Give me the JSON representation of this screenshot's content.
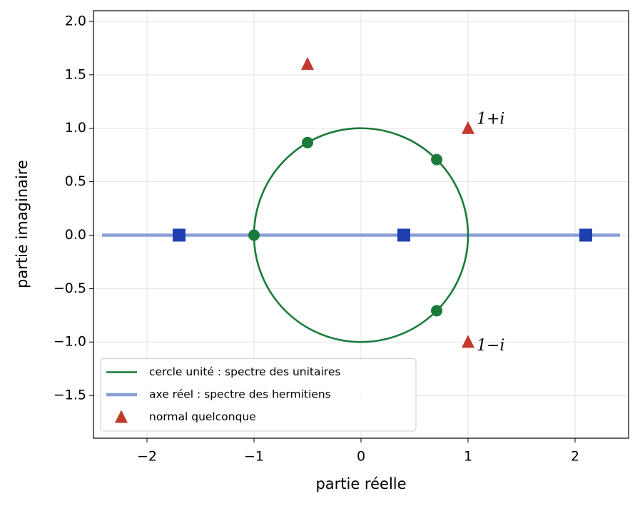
{
  "chart_data": {
    "type": "scatter",
    "xlabel": "partie réelle",
    "ylabel": "partie imaginaire",
    "xlim": [
      -2.5,
      2.5
    ],
    "ylim": [
      -1.9,
      2.1
    ],
    "xticks": [
      {
        "value": -2,
        "label": "−2"
      },
      {
        "value": -1,
        "label": "−1"
      },
      0,
      1,
      2
    ],
    "yticks": [
      {
        "value": -1.5,
        "label": "−1.5"
      },
      {
        "value": -1.0,
        "label": "−1.0"
      },
      {
        "value": -0.5,
        "label": "−0.5"
      },
      {
        "value": 0,
        "label": "0.0"
      },
      0.5,
      {
        "value": 1.0,
        "label": "1.0"
      },
      1.5,
      {
        "value": 2.0,
        "label": "2.0"
      }
    ],
    "grid": true,
    "legend": "lower left",
    "series": [
      {
        "name": "cercle unité : spectre des unitaires",
        "kind": "circle",
        "color": "#1a7a3a",
        "center": [
          0,
          0
        ],
        "radius": 1
      },
      {
        "name": "axe réel : spectre des hermitiens",
        "kind": "line",
        "color": "#8a9fd8",
        "x": [
          -2.42,
          2.42
        ],
        "values": [
          0,
          0
        ]
      },
      {
        "name": "normal quelconque",
        "kind": "triangle",
        "color": "#c0392b",
        "x": [
          -0.5,
          1,
          1
        ],
        "values": [
          1.6,
          1,
          -1
        ]
      },
      {
        "kind": "dot",
        "color": "#1a7a3a",
        "x": [
          -0.5,
          0.707,
          -1,
          0.707
        ],
        "values": [
          0.866,
          0.707,
          0,
          -0.707
        ]
      },
      {
        "kind": "square",
        "color": "#1f3fb0",
        "x": [
          -1.7,
          0.4,
          2.1
        ],
        "values": [
          0,
          0,
          0
        ]
      }
    ],
    "annotations": [
      {
        "text": "1+i",
        "x": 1,
        "y": 1,
        "color": "#c0392b"
      },
      {
        "text": "1−i",
        "x": 1,
        "y": -1,
        "color": "#c0392b"
      }
    ]
  }
}
